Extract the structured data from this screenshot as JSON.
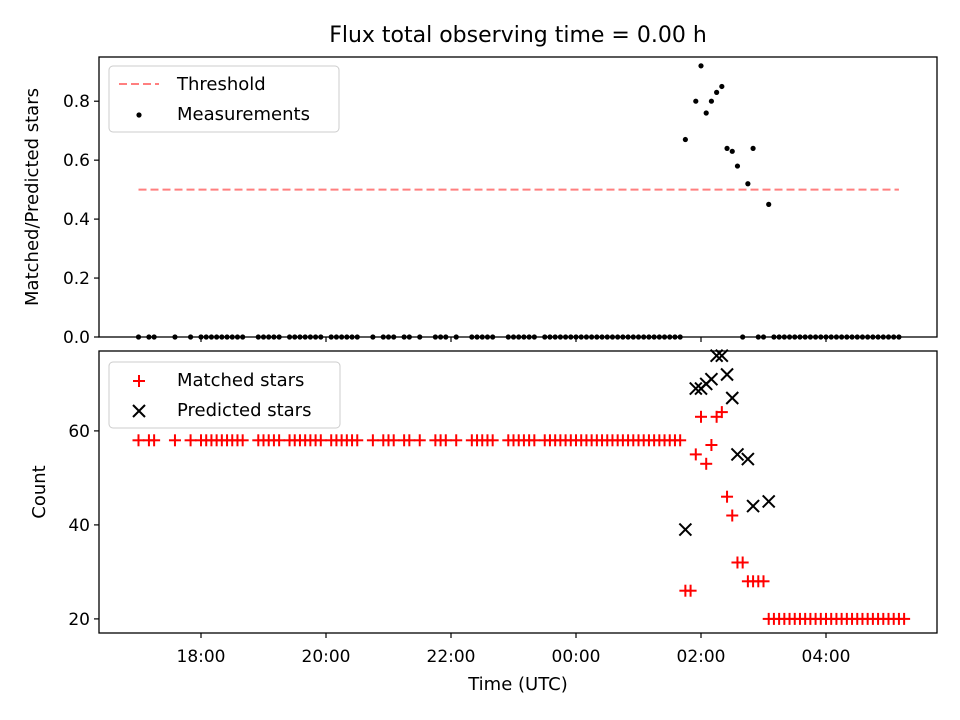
{
  "chart_data": [
    {
      "type": "scatter",
      "title": "Flux total observing time = 0.00 h",
      "xlabel": "",
      "ylabel": "Matched/Predicted stars",
      "ylim": [
        0,
        0.95
      ],
      "yticks": [
        "0.0",
        "0.2",
        "0.4",
        "0.6",
        "0.8"
      ],
      "legend_position": "top-left",
      "threshold": {
        "name": "Threshold",
        "value": 0.5,
        "x_start": "17:00",
        "x_end": "05:10",
        "color": "#ff7f7f"
      },
      "series": [
        {
          "name": "Measurements",
          "color": "#000000",
          "marker": "dot",
          "points": [
            [
              "17:00",
              0
            ],
            [
              "17:10",
              0
            ],
            [
              "17:15",
              0
            ],
            [
              "17:35",
              0
            ],
            [
              "17:50",
              0
            ],
            [
              "18:00",
              0
            ],
            [
              "18:05",
              0
            ],
            [
              "18:10",
              0
            ],
            [
              "18:15",
              0
            ],
            [
              "18:20",
              0
            ],
            [
              "18:25",
              0
            ],
            [
              "18:30",
              0
            ],
            [
              "18:35",
              0
            ],
            [
              "18:40",
              0
            ],
            [
              "18:55",
              0
            ],
            [
              "19:00",
              0
            ],
            [
              "19:05",
              0
            ],
            [
              "19:10",
              0
            ],
            [
              "19:15",
              0
            ],
            [
              "19:25",
              0
            ],
            [
              "19:30",
              0
            ],
            [
              "19:35",
              0
            ],
            [
              "19:40",
              0
            ],
            [
              "19:45",
              0
            ],
            [
              "19:50",
              0
            ],
            [
              "19:55",
              0
            ],
            [
              "20:05",
              0
            ],
            [
              "20:10",
              0
            ],
            [
              "20:15",
              0
            ],
            [
              "20:20",
              0
            ],
            [
              "20:25",
              0
            ],
            [
              "20:30",
              0
            ],
            [
              "20:45",
              0
            ],
            [
              "20:55",
              0
            ],
            [
              "21:00",
              0
            ],
            [
              "21:05",
              0
            ],
            [
              "21:15",
              0
            ],
            [
              "21:20",
              0
            ],
            [
              "21:30",
              0
            ],
            [
              "21:45",
              0
            ],
            [
              "21:50",
              0
            ],
            [
              "21:55",
              0
            ],
            [
              "22:05",
              0
            ],
            [
              "22:20",
              0
            ],
            [
              "22:25",
              0
            ],
            [
              "22:30",
              0
            ],
            [
              "22:35",
              0
            ],
            [
              "22:40",
              0
            ],
            [
              "22:55",
              0
            ],
            [
              "23:00",
              0
            ],
            [
              "23:05",
              0
            ],
            [
              "23:10",
              0
            ],
            [
              "23:15",
              0
            ],
            [
              "23:20",
              0
            ],
            [
              "23:30",
              0
            ],
            [
              "23:35",
              0
            ],
            [
              "23:40",
              0
            ],
            [
              "23:45",
              0
            ],
            [
              "23:50",
              0
            ],
            [
              "23:55",
              0
            ],
            [
              "00:00",
              0
            ],
            [
              "00:05",
              0
            ],
            [
              "00:10",
              0
            ],
            [
              "00:15",
              0
            ],
            [
              "00:20",
              0
            ],
            [
              "00:25",
              0
            ],
            [
              "00:30",
              0
            ],
            [
              "00:35",
              0
            ],
            [
              "00:40",
              0
            ],
            [
              "00:45",
              0
            ],
            [
              "00:50",
              0
            ],
            [
              "00:55",
              0
            ],
            [
              "01:00",
              0
            ],
            [
              "01:05",
              0
            ],
            [
              "01:10",
              0
            ],
            [
              "01:15",
              0
            ],
            [
              "01:20",
              0
            ],
            [
              "01:25",
              0
            ],
            [
              "01:30",
              0
            ],
            [
              "01:35",
              0
            ],
            [
              "01:40",
              0
            ],
            [
              "01:45",
              0.67
            ],
            [
              "01:55",
              0.8
            ],
            [
              "02:00",
              0.92
            ],
            [
              "02:05",
              0.76
            ],
            [
              "02:10",
              0.8
            ],
            [
              "02:15",
              0.83
            ],
            [
              "02:20",
              0.85
            ],
            [
              "02:25",
              0.64
            ],
            [
              "02:30",
              0.63
            ],
            [
              "02:35",
              0.58
            ],
            [
              "02:40",
              0
            ],
            [
              "02:45",
              0.52
            ],
            [
              "02:50",
              0.64
            ],
            [
              "02:55",
              0
            ],
            [
              "03:00",
              0
            ],
            [
              "03:05",
              0.45
            ],
            [
              "03:10",
              0
            ],
            [
              "03:15",
              0
            ],
            [
              "03:20",
              0
            ],
            [
              "03:25",
              0
            ],
            [
              "03:30",
              0
            ],
            [
              "03:35",
              0
            ],
            [
              "03:40",
              0
            ],
            [
              "03:45",
              0
            ],
            [
              "03:50",
              0
            ],
            [
              "03:55",
              0
            ],
            [
              "04:00",
              0
            ],
            [
              "04:05",
              0
            ],
            [
              "04:10",
              0
            ],
            [
              "04:15",
              0
            ],
            [
              "04:20",
              0
            ],
            [
              "04:25",
              0
            ],
            [
              "04:30",
              0
            ],
            [
              "04:35",
              0
            ],
            [
              "04:40",
              0
            ],
            [
              "04:45",
              0
            ],
            [
              "04:50",
              0
            ],
            [
              "04:55",
              0
            ],
            [
              "05:00",
              0
            ],
            [
              "05:05",
              0
            ],
            [
              "05:10",
              0
            ]
          ]
        }
      ]
    },
    {
      "type": "scatter",
      "title": "",
      "xlabel": "Time (UTC)",
      "ylabel": "Count",
      "ylim": [
        17,
        77
      ],
      "yticks": [
        "20",
        "40",
        "60"
      ],
      "xticks": [
        "18:00",
        "20:00",
        "22:00",
        "00:00",
        "02:00",
        "04:00"
      ],
      "legend_position": "top-left",
      "series": [
        {
          "name": "Matched stars",
          "color": "#ff0000",
          "marker": "plus",
          "points": [
            [
              "17:00",
              58
            ],
            [
              "17:10",
              58
            ],
            [
              "17:15",
              58
            ],
            [
              "17:35",
              58
            ],
            [
              "17:50",
              58
            ],
            [
              "18:00",
              58
            ],
            [
              "18:05",
              58
            ],
            [
              "18:10",
              58
            ],
            [
              "18:15",
              58
            ],
            [
              "18:20",
              58
            ],
            [
              "18:25",
              58
            ],
            [
              "18:30",
              58
            ],
            [
              "18:35",
              58
            ],
            [
              "18:40",
              58
            ],
            [
              "18:55",
              58
            ],
            [
              "19:00",
              58
            ],
            [
              "19:05",
              58
            ],
            [
              "19:10",
              58
            ],
            [
              "19:15",
              58
            ],
            [
              "19:25",
              58
            ],
            [
              "19:30",
              58
            ],
            [
              "19:35",
              58
            ],
            [
              "19:40",
              58
            ],
            [
              "19:45",
              58
            ],
            [
              "19:50",
              58
            ],
            [
              "19:55",
              58
            ],
            [
              "20:05",
              58
            ],
            [
              "20:10",
              58
            ],
            [
              "20:15",
              58
            ],
            [
              "20:20",
              58
            ],
            [
              "20:25",
              58
            ],
            [
              "20:30",
              58
            ],
            [
              "20:45",
              58
            ],
            [
              "20:55",
              58
            ],
            [
              "21:00",
              58
            ],
            [
              "21:05",
              58
            ],
            [
              "21:15",
              58
            ],
            [
              "21:20",
              58
            ],
            [
              "21:30",
              58
            ],
            [
              "21:45",
              58
            ],
            [
              "21:50",
              58
            ],
            [
              "21:55",
              58
            ],
            [
              "22:05",
              58
            ],
            [
              "22:20",
              58
            ],
            [
              "22:25",
              58
            ],
            [
              "22:30",
              58
            ],
            [
              "22:35",
              58
            ],
            [
              "22:40",
              58
            ],
            [
              "22:55",
              58
            ],
            [
              "23:00",
              58
            ],
            [
              "23:05",
              58
            ],
            [
              "23:10",
              58
            ],
            [
              "23:15",
              58
            ],
            [
              "23:20",
              58
            ],
            [
              "23:30",
              58
            ],
            [
              "23:35",
              58
            ],
            [
              "23:40",
              58
            ],
            [
              "23:45",
              58
            ],
            [
              "23:50",
              58
            ],
            [
              "23:55",
              58
            ],
            [
              "00:00",
              58
            ],
            [
              "00:05",
              58
            ],
            [
              "00:10",
              58
            ],
            [
              "00:15",
              58
            ],
            [
              "00:20",
              58
            ],
            [
              "00:25",
              58
            ],
            [
              "00:30",
              58
            ],
            [
              "00:35",
              58
            ],
            [
              "00:40",
              58
            ],
            [
              "00:45",
              58
            ],
            [
              "00:50",
              58
            ],
            [
              "00:55",
              58
            ],
            [
              "01:00",
              58
            ],
            [
              "01:05",
              58
            ],
            [
              "01:10",
              58
            ],
            [
              "01:15",
              58
            ],
            [
              "01:20",
              58
            ],
            [
              "01:25",
              58
            ],
            [
              "01:30",
              58
            ],
            [
              "01:35",
              58
            ],
            [
              "01:40",
              58
            ],
            [
              "01:45",
              26
            ],
            [
              "01:50",
              26
            ],
            [
              "01:55",
              55
            ],
            [
              "02:00",
              63
            ],
            [
              "02:05",
              53
            ],
            [
              "02:10",
              57
            ],
            [
              "02:15",
              63
            ],
            [
              "02:20",
              64
            ],
            [
              "02:25",
              46
            ],
            [
              "02:30",
              42
            ],
            [
              "02:35",
              32
            ],
            [
              "02:40",
              32
            ],
            [
              "02:45",
              28
            ],
            [
              "02:50",
              28
            ],
            [
              "02:55",
              28
            ],
            [
              "03:00",
              28
            ],
            [
              "03:05",
              20
            ],
            [
              "03:10",
              20
            ],
            [
              "03:15",
              20
            ],
            [
              "03:20",
              20
            ],
            [
              "03:25",
              20
            ],
            [
              "03:30",
              20
            ],
            [
              "03:35",
              20
            ],
            [
              "03:40",
              20
            ],
            [
              "03:45",
              20
            ],
            [
              "03:50",
              20
            ],
            [
              "03:55",
              20
            ],
            [
              "04:00",
              20
            ],
            [
              "04:05",
              20
            ],
            [
              "04:10",
              20
            ],
            [
              "04:15",
              20
            ],
            [
              "04:20",
              20
            ],
            [
              "04:25",
              20
            ],
            [
              "04:30",
              20
            ],
            [
              "04:35",
              20
            ],
            [
              "04:40",
              20
            ],
            [
              "04:45",
              20
            ],
            [
              "04:50",
              20
            ],
            [
              "04:55",
              20
            ],
            [
              "05:00",
              20
            ],
            [
              "05:05",
              20
            ],
            [
              "05:10",
              20
            ],
            [
              "05:15",
              20
            ]
          ]
        },
        {
          "name": "Predicted stars",
          "color": "#000000",
          "marker": "x",
          "points": [
            [
              "01:45",
              39
            ],
            [
              "01:55",
              69
            ],
            [
              "02:00",
              69
            ],
            [
              "02:05",
              70
            ],
            [
              "02:10",
              71
            ],
            [
              "02:15",
              76
            ],
            [
              "02:20",
              76
            ],
            [
              "02:25",
              72
            ],
            [
              "02:30",
              67
            ],
            [
              "02:35",
              55
            ],
            [
              "02:45",
              54
            ],
            [
              "02:50",
              44
            ],
            [
              "03:05",
              45
            ]
          ]
        }
      ]
    }
  ]
}
